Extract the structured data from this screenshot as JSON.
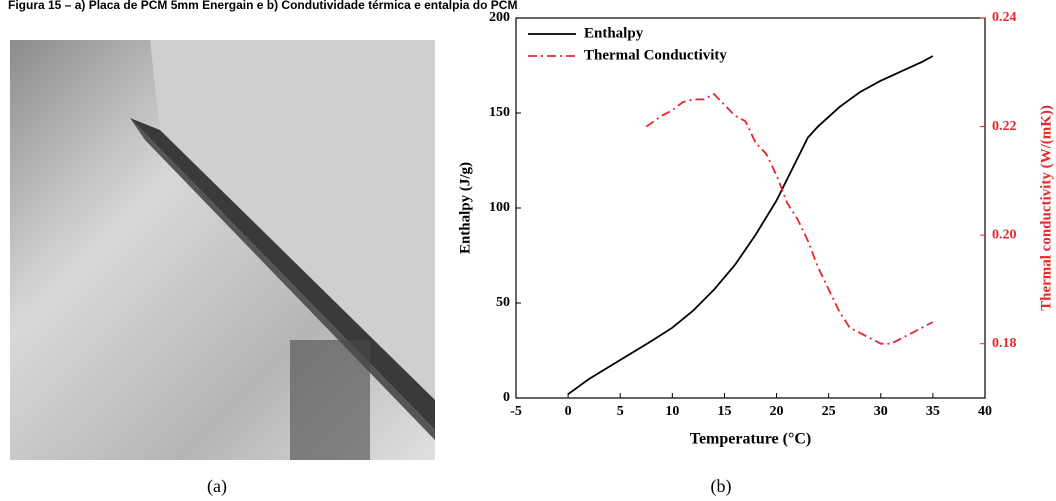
{
  "header": {
    "title": "Figura 15 – a) Placa de PCM 5mm Energain e b) Condutividade térmica e entalpia do PCM"
  },
  "panels": {
    "a": "(a)",
    "b": "(b)"
  },
  "chart_data": {
    "type": "line",
    "xlabel": "Temperature (°C)",
    "ylabel": "Enthalpy (J/g)",
    "y2label": "Thermal conductivity (W/(mK))",
    "xlim": [
      -5,
      40
    ],
    "xticks": [
      -5,
      0,
      5,
      10,
      15,
      20,
      25,
      30,
      35,
      40
    ],
    "ylim": [
      0,
      200
    ],
    "yticks": [
      0,
      50,
      100,
      150,
      200
    ],
    "y2lim": [
      0.17,
      0.24
    ],
    "y2ticks": [
      0.18,
      {
        "value": 0.2,
        "label": "0.20"
      },
      0.22,
      0.24
    ],
    "legend": "upper left",
    "series": [
      {
        "name": "Enthalpy",
        "color": "#000000",
        "dash": "solid",
        "x": [
          0,
          2,
          5,
          8,
          10,
          12,
          14,
          16,
          18,
          20,
          21,
          22,
          23,
          24,
          25,
          26,
          27,
          28,
          30,
          32,
          34,
          35
        ],
        "values": [
          2,
          10,
          20,
          30,
          37,
          46,
          57,
          70,
          86,
          104,
          115,
          126,
          137,
          143,
          148,
          153,
          157,
          161,
          167,
          172,
          177,
          180
        ]
      },
      {
        "name": "Thermal Conductivity",
        "color": "#e8262b",
        "dash": "dashdot",
        "axis": "y2",
        "x": [
          7.5,
          9,
          10,
          11,
          12,
          13,
          14,
          15,
          16,
          17,
          18,
          19,
          20,
          21,
          22,
          23,
          24,
          25,
          26,
          27,
          28,
          29,
          30,
          31,
          32,
          33,
          34,
          35
        ],
        "values": [
          0.22,
          0.222,
          0.223,
          0.2245,
          0.225,
          0.225,
          0.226,
          0.224,
          0.222,
          0.221,
          0.217,
          0.215,
          0.211,
          0.206,
          0.203,
          0.199,
          0.194,
          0.19,
          0.186,
          0.183,
          0.182,
          0.181,
          0.18,
          0.18,
          0.181,
          0.182,
          0.183,
          0.184
        ]
      }
    ]
  }
}
